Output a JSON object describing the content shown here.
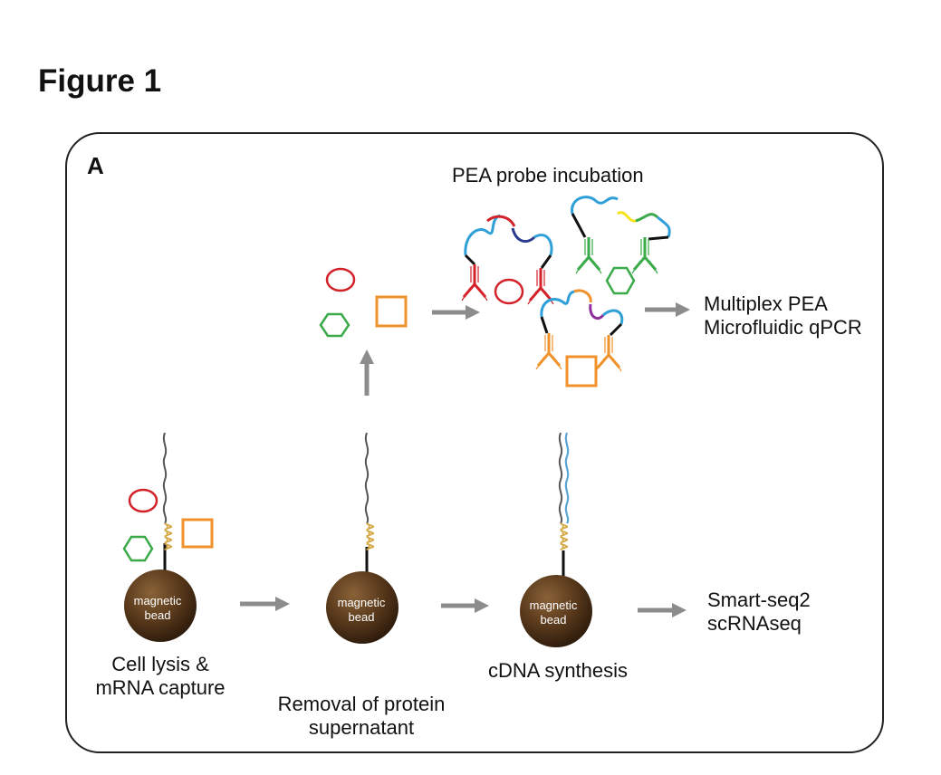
{
  "figure": {
    "title": "Figure 1",
    "panel_letter": "A"
  },
  "steps": {
    "pea_incubation": "PEA probe incubation",
    "multiplex_pea": "Multiplex PEA",
    "microfluidic_qpcr": "Microfluidic qPCR",
    "cell_lysis_line1": "Cell lysis &",
    "cell_lysis_line2": "mRNA capture",
    "removal_line1": "Removal of protein",
    "removal_line2": "supernatant",
    "cdna_synthesis": "cDNA synthesis",
    "smartseq_line1": "Smart-seq2",
    "smartseq_line2": "scRNAseq"
  },
  "bead": {
    "line1": "magnetic",
    "line2": "bead"
  },
  "polya_label": "AAAA",
  "colors": {
    "bead": "#5a3a1c",
    "arrow": "#8c8c8c",
    "circle": "#d3232a",
    "hexagon": "#3aaa4a",
    "square": "#f0922b",
    "polya": "#d4a843",
    "mrna": "#555555",
    "cdna": "#5aa5d6"
  }
}
